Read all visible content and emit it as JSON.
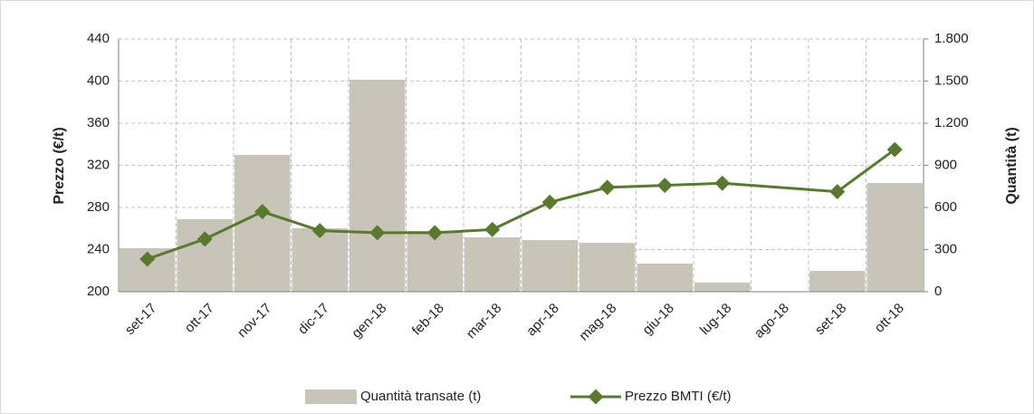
{
  "chart_data": {
    "type": "bar-line",
    "categories": [
      "set-17",
      "ott-17",
      "nov-17",
      "dic-17",
      "gen-18",
      "feb-18",
      "mar-18",
      "apr-18",
      "mag-18",
      "giu-18",
      "lug-18",
      "ago-18",
      "set-18",
      "ott-18"
    ],
    "series": [
      {
        "name": "Quantità transate (t)",
        "type": "bar",
        "axis": "y2",
        "color": "#c8c4b8",
        "values": [
          310,
          516,
          974,
          452,
          1510,
          432,
          387,
          368,
          348,
          200,
          65,
          0,
          148,
          774
        ]
      },
      {
        "name": "Prezzo BMTI (€/t)",
        "type": "line",
        "axis": "y",
        "color": "#577a2c",
        "values": [
          231,
          250,
          276,
          258,
          256,
          256,
          259,
          285,
          299,
          301,
          303,
          null,
          295,
          335
        ]
      }
    ],
    "ylabel": "Prezzo (€/t)",
    "y2label": "Quantità (t)",
    "ylim": [
      200,
      440
    ],
    "yticks": [
      200,
      240,
      280,
      320,
      360,
      400,
      440
    ],
    "y2lim": [
      0,
      1800
    ],
    "y2ticks": [
      0,
      300,
      600,
      900,
      {
        "value": 1200,
        "label": "1.200"
      },
      {
        "value": 1500,
        "label": "1.500"
      },
      {
        "value": 1800,
        "label": "1.800"
      }
    ],
    "grid": true,
    "legend": "bottom"
  }
}
